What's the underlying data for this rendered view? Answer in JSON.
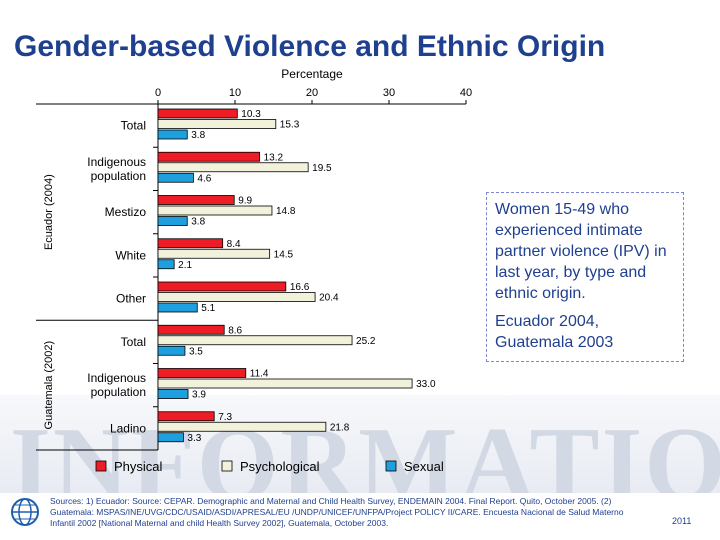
{
  "slide": {
    "title": "Gender-based Violence and Ethnic Origin",
    "watermark_text": "INFORMATION",
    "callout": {
      "line1": "Women 15-49 who experienced intimate partner violence (IPV) in last year, by type and ethnic origin.",
      "line2": "Ecuador 2004, Guatemala 2003"
    },
    "sources": "Sources: 1) Ecuador: Source: CEPAR. Demographic and Maternal and Child Health Survey, ENDEMAIN 2004. Final Report. Quito, October 2005. (2) Guatemala: MSPAS/INE/UVG/CDC/USAID/ASDI/APRESAL/EU /UNDP/UNICEF/UNFPA/Project POLICY II/CARE. Encuesta Nacional de Salud Materno Infantil 2002 [National Maternal and child Health Survey 2002], Guatemala, October 2003.",
    "year": "2011"
  },
  "chart_data": {
    "type": "bar",
    "orientation": "horizontal",
    "xlabel": "Percentage",
    "xlim": [
      0,
      40
    ],
    "xticks": [
      "0",
      "10",
      "20",
      "30",
      "40"
    ],
    "grid": false,
    "legend_position": "bottom",
    "groups": [
      {
        "label": "Ecuador (2004)",
        "categories": [
          "Total",
          "Indigenous population",
          "Mestizo",
          "White",
          "Other"
        ]
      },
      {
        "label": "Guatemala (2002)",
        "categories": [
          "Total",
          "Indigenous population",
          "Ladino"
        ]
      }
    ],
    "categories": [
      "Total",
      "Indigenous population",
      "Mestizo",
      "White",
      "Other",
      "Total",
      "Indigenous population",
      "Ladino"
    ],
    "category_lines": [
      [
        "Total"
      ],
      [
        "Indigenous",
        "population"
      ],
      [
        "Mestizo"
      ],
      [
        "White"
      ],
      [
        "Other"
      ],
      [
        "Total"
      ],
      [
        "Indigenous",
        "population"
      ],
      [
        "Ladino"
      ]
    ],
    "series": [
      {
        "name": "Physical",
        "color": "#ee1c25",
        "values": [
          10.3,
          13.2,
          9.9,
          8.4,
          16.6,
          8.6,
          11.4,
          7.3
        ],
        "labels": [
          "10.3",
          "13.2",
          "9.9",
          "8.4",
          "16.6",
          "8.6",
          "11.4",
          "7.3"
        ]
      },
      {
        "name": "Psychological",
        "color": "#f2f2dc",
        "values": [
          15.3,
          19.5,
          14.8,
          14.5,
          20.4,
          25.2,
          33.0,
          21.8
        ],
        "labels": [
          "15.3",
          "19.5",
          "14.8",
          "14.5",
          "20.4",
          "25.2",
          "33.0",
          "21.8"
        ]
      },
      {
        "name": "Sexual",
        "color": "#1e9fde",
        "values": [
          3.8,
          4.6,
          3.8,
          2.1,
          5.1,
          3.5,
          3.9,
          3.3
        ],
        "labels": [
          "3.8",
          "4.6",
          "3.8",
          "2.1",
          "5.1",
          "3.5",
          "3.9",
          "3.3"
        ]
      }
    ]
  }
}
